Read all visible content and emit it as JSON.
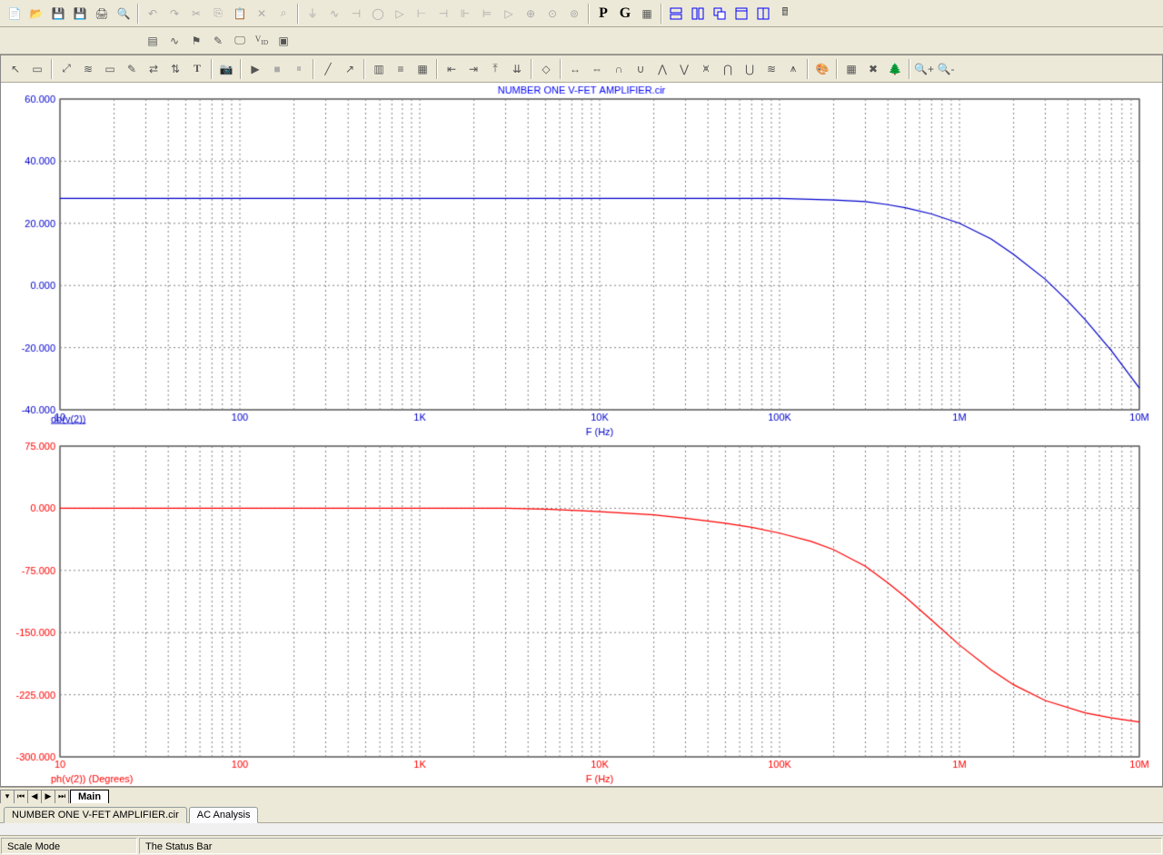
{
  "title_text": "NUMBER ONE V-FET AMPLIFIER.cir",
  "title_color": "#0000ff",
  "background": "#ffffff",
  "axis_font_size": 11,
  "chart1": {
    "series_label": "db(v(2))",
    "series_color": "#0000cc",
    "x_label": "F (Hz)",
    "y_ticks": [
      -40,
      -20,
      0,
      20,
      40,
      60
    ],
    "y_min": -40,
    "y_max": 60,
    "x_min": 10,
    "x_max": 10000000,
    "x_tick_labels": [
      "10",
      "100",
      "1K",
      "10K",
      "100K",
      "1M",
      "10M"
    ],
    "grid_color": "#808080",
    "data": [
      [
        10,
        28
      ],
      [
        100,
        28
      ],
      [
        1000,
        28
      ],
      [
        10000,
        28
      ],
      [
        50000,
        28
      ],
      [
        100000,
        28
      ],
      [
        200000,
        27.5
      ],
      [
        300000,
        27
      ],
      [
        400000,
        26
      ],
      [
        500000,
        25
      ],
      [
        700000,
        23
      ],
      [
        1000000,
        20
      ],
      [
        1500000,
        15
      ],
      [
        2000000,
        10
      ],
      [
        3000000,
        2
      ],
      [
        4000000,
        -5
      ],
      [
        5000000,
        -11
      ],
      [
        7000000,
        -21
      ],
      [
        10000000,
        -33
      ]
    ]
  },
  "chart2": {
    "series_label": "ph(v(2)) (Degrees)",
    "series_color": "#ff0000",
    "x_label": "F (Hz)",
    "y_ticks": [
      -300,
      -225,
      -150,
      -75,
      0,
      75
    ],
    "y_min": -300,
    "y_max": 75,
    "x_min": 10,
    "x_max": 10000000,
    "x_tick_labels": [
      "10",
      "100",
      "1K",
      "10K",
      "100K",
      "1M",
      "10M"
    ],
    "grid_color": "#808080",
    "data": [
      [
        10,
        0
      ],
      [
        100,
        0
      ],
      [
        1000,
        0
      ],
      [
        3000,
        0
      ],
      [
        5000,
        -1
      ],
      [
        8000,
        -3
      ],
      [
        10000,
        -4
      ],
      [
        20000,
        -8
      ],
      [
        30000,
        -12
      ],
      [
        50000,
        -18
      ],
      [
        70000,
        -23
      ],
      [
        100000,
        -30
      ],
      [
        150000,
        -40
      ],
      [
        200000,
        -50
      ],
      [
        300000,
        -70
      ],
      [
        400000,
        -90
      ],
      [
        500000,
        -107
      ],
      [
        700000,
        -135
      ],
      [
        1000000,
        -165
      ],
      [
        1500000,
        -195
      ],
      [
        2000000,
        -213
      ],
      [
        3000000,
        -232
      ],
      [
        5000000,
        -247
      ],
      [
        7000000,
        -253
      ],
      [
        10000000,
        -258
      ]
    ]
  },
  "sheet_tab": "Main",
  "workbook_tabs": [
    {
      "label": "NUMBER ONE V-FET AMPLIFIER.cir",
      "active": false
    },
    {
      "label": "AC Analysis",
      "active": true
    }
  ],
  "status": {
    "mode": "Scale Mode",
    "text": "The Status Bar"
  }
}
